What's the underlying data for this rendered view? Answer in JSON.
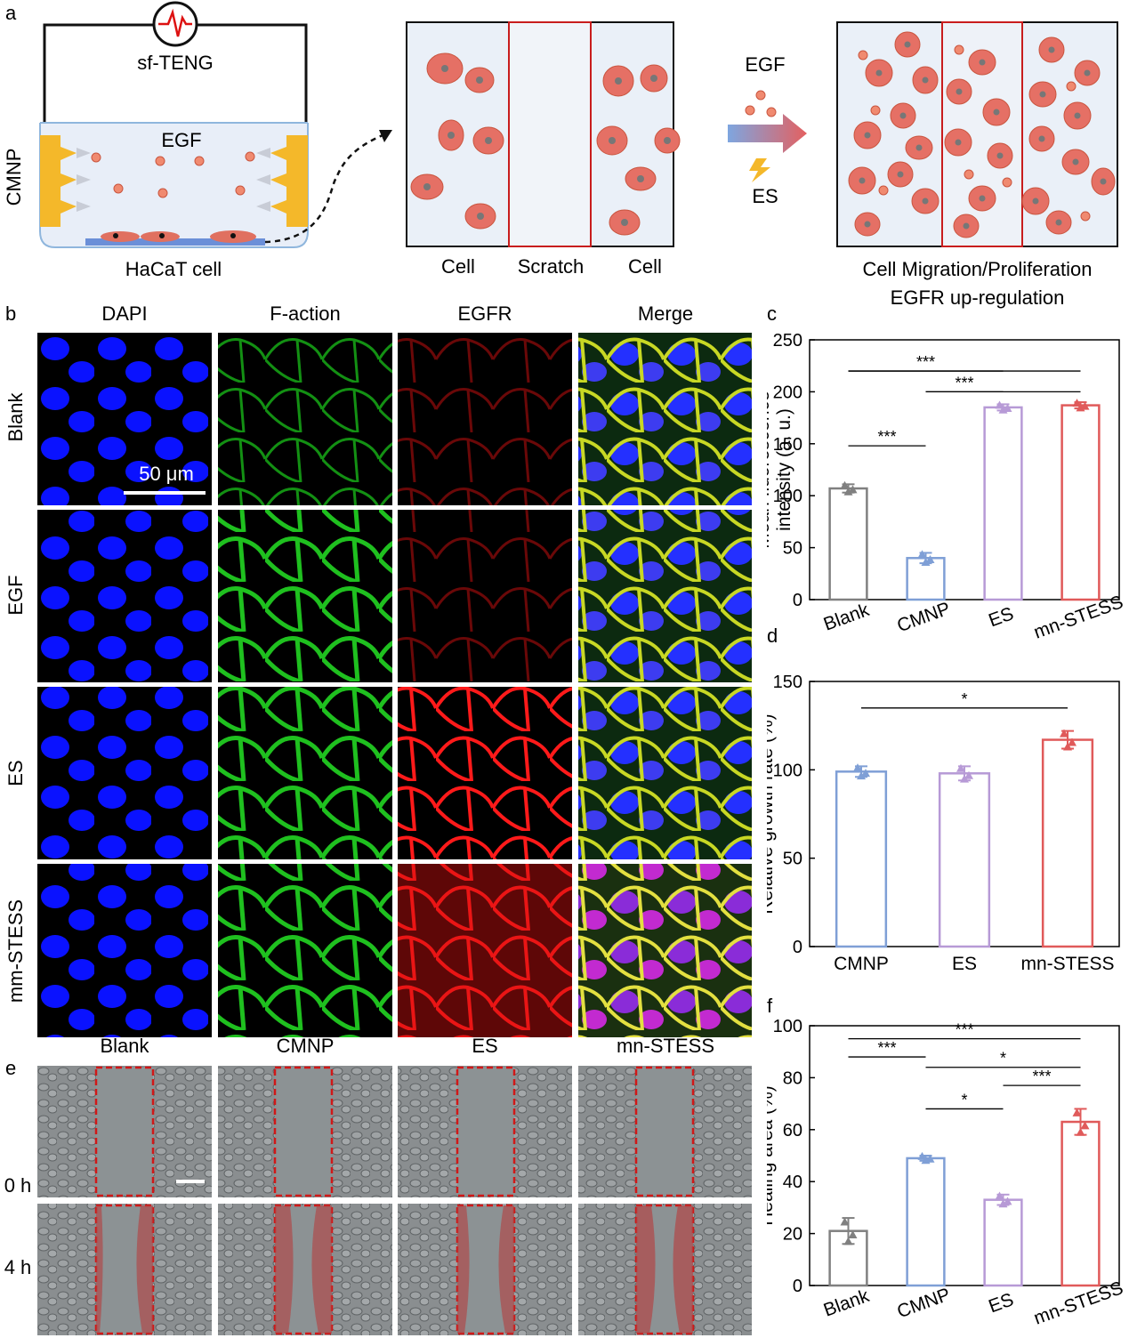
{
  "panel_letters": {
    "a": "a",
    "b": "b",
    "c": "c",
    "d": "d",
    "e": "e",
    "f": "f"
  },
  "schematic": {
    "teng_label": "sf-TENG",
    "cmnp_label": "CMNP",
    "egf_label": "EGF",
    "cell_label": "HaCaT cell",
    "scratch_labels": [
      "Cell",
      "Scratch",
      "Cell"
    ],
    "arrow_top": "EGF",
    "arrow_bottom": "ES",
    "result_line1": "Cell Migration/Proliferation",
    "result_line2": "EGFR up-regulation"
  },
  "panel_b": {
    "columns": [
      "DAPI",
      "F-action",
      "EGFR",
      "Merge"
    ],
    "rows": [
      "Blank",
      "EGF",
      "ES",
      "mm-STESS"
    ],
    "scale_bar": "50 μm"
  },
  "panel_e": {
    "columns": [
      "Blank",
      "CMNP",
      "ES",
      "mn-STESS"
    ],
    "rows": [
      "0 h",
      "4 h"
    ]
  },
  "colors": {
    "blank": "#808080",
    "cmnp": "#7f9fd6",
    "es": "#b79ad6",
    "stess": "#e05a5a",
    "dapi": "#1010ff",
    "factin": "#22c022",
    "egfr": "#ff1a1a"
  },
  "chart_data": [
    {
      "id": "c",
      "type": "bar",
      "categories": [
        "Blank",
        "CMNP",
        "ES",
        "mn-STESS"
      ],
      "values": [
        107,
        40,
        185,
        187
      ],
      "errors": [
        4,
        5,
        3,
        3
      ],
      "ylabel": "Mean fluorescence intensity (a. u.)",
      "ylim": [
        0,
        250
      ],
      "yticks": [
        0,
        50,
        100,
        150,
        200,
        250
      ],
      "significance": [
        "***",
        "***",
        "***"
      ]
    },
    {
      "id": "d",
      "type": "bar",
      "categories": [
        "CMNP",
        "ES",
        "mn-STESS"
      ],
      "values": [
        99,
        98,
        117
      ],
      "errors": [
        3,
        4,
        5
      ],
      "ylabel": "Relative growth rate (%)",
      "ylim": [
        0,
        150
      ],
      "yticks": [
        0,
        50,
        100,
        150
      ],
      "significance": [
        "*"
      ]
    },
    {
      "id": "f",
      "type": "bar",
      "categories": [
        "Blank",
        "CMNP",
        "ES",
        "mn-STESS"
      ],
      "values": [
        21,
        49,
        33,
        63
      ],
      "errors": [
        5,
        1,
        2,
        5
      ],
      "ylabel": "Healing area (%)",
      "ylim": [
        0,
        100
      ],
      "yticks": [
        0,
        20,
        40,
        60,
        80,
        100
      ],
      "significance": [
        "***",
        "***",
        "***",
        "*",
        "*"
      ]
    }
  ]
}
